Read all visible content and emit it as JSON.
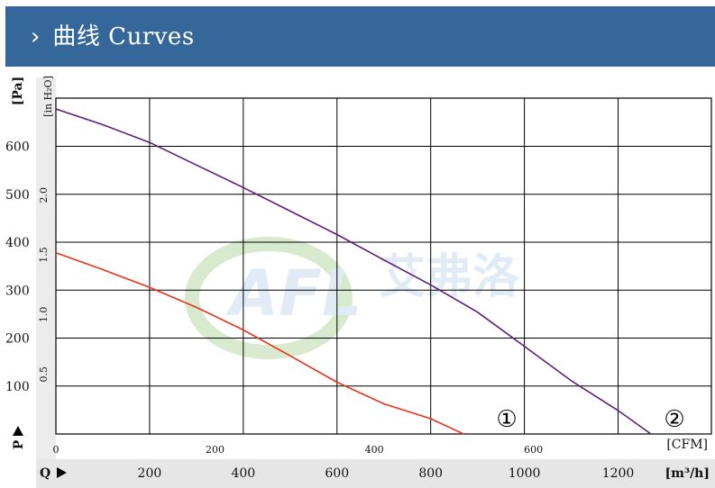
{
  "header": {
    "chevron": "›",
    "title": "曲线 Curves"
  },
  "watermark": {
    "logo_text": "AFL",
    "brand_text": "艾弗洛"
  },
  "colors": {
    "header_bg": "#36679a",
    "curve_1": "#e8321c",
    "curve_2": "#5a1f74",
    "q_band": "#e6e6e6",
    "watermark": "#c9dcef"
  },
  "chart_data": {
    "type": "line",
    "x_unit_m3h": "[m³/h]",
    "x_unit_cfm": "[CFM]",
    "y_unit_pa": "[Pa]",
    "y_unit_inh2o": "[in H₂O]",
    "q_label": "Q",
    "p_label": "P",
    "x_ticks_m3h": [
      "200",
      "400",
      "600",
      "800",
      "1000",
      "1200"
    ],
    "x_ticks_cfm": [
      "0",
      "200",
      "400",
      "600"
    ],
    "y_ticks_pa": [
      "100",
      "200",
      "300",
      "400",
      "500",
      "600"
    ],
    "y_ticks_inh2o": [
      "0.5",
      "1.0",
      "1.5",
      "2.0"
    ],
    "xlim_m3h": [
      0,
      1400
    ],
    "ylim_pa": [
      0,
      700
    ],
    "grid": true,
    "series": [
      {
        "name": "①",
        "color": "#e8321c",
        "points": [
          [
            0,
            378
          ],
          [
            100,
            343
          ],
          [
            200,
            306
          ],
          [
            300,
            264
          ],
          [
            400,
            217
          ],
          [
            500,
            163
          ],
          [
            600,
            108
          ],
          [
            700,
            63
          ],
          [
            800,
            32
          ],
          [
            870,
            0
          ]
        ]
      },
      {
        "name": "②",
        "color": "#5a1f74",
        "points": [
          [
            0,
            678
          ],
          [
            100,
            645
          ],
          [
            200,
            608
          ],
          [
            300,
            561
          ],
          [
            400,
            514
          ],
          [
            500,
            465
          ],
          [
            600,
            416
          ],
          [
            700,
            363
          ],
          [
            800,
            311
          ],
          [
            900,
            254
          ],
          [
            1000,
            183
          ],
          [
            1100,
            111
          ],
          [
            1200,
            49
          ],
          [
            1270,
            0
          ]
        ]
      }
    ]
  }
}
